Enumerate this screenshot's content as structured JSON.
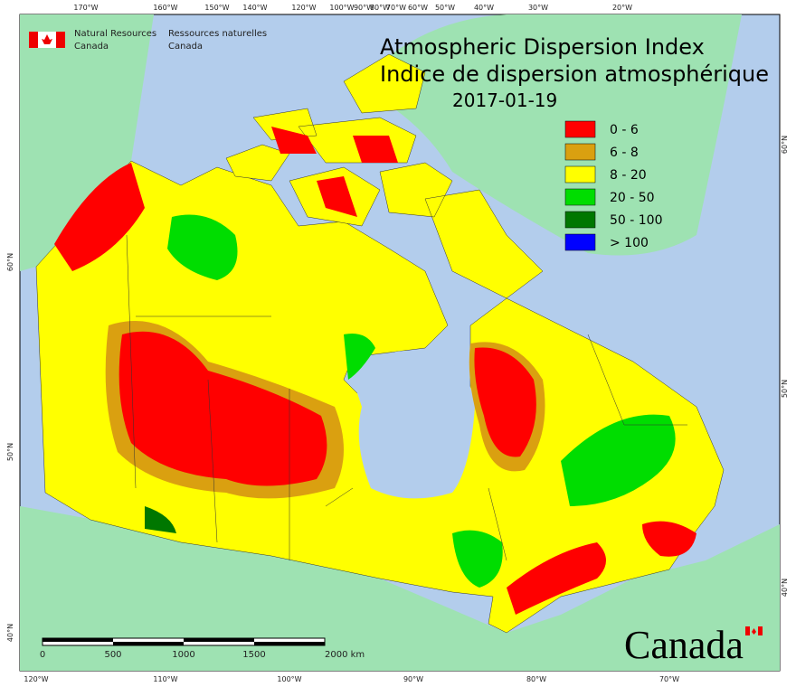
{
  "header": {
    "agency_en": [
      "Natural Resources",
      "Canada"
    ],
    "agency_fr": [
      "Ressources naturelles",
      "Canada"
    ],
    "title": [
      "Atmospheric Dispersion Index",
      "Indice de dispersion atmosphérique"
    ],
    "date": "2017-01-19"
  },
  "legend": {
    "items": [
      {
        "label": "0 - 6",
        "color": "#ff0000"
      },
      {
        "label": "6 - 8",
        "color": "#daa010"
      },
      {
        "label": "8 - 20",
        "color": "#ffff00"
      },
      {
        "label": "20 - 50",
        "color": "#00dd00"
      },
      {
        "label": "50 - 100",
        "color": "#007700"
      },
      {
        "label": "> 100",
        "color": "#0000ff"
      }
    ]
  },
  "graticule": {
    "top": [
      "170°W",
      "160°W",
      "150°W",
      "140°W",
      "120°W",
      "100°W",
      "90°W",
      "80°W",
      "70°W",
      "60°W",
      "50°W",
      "40°W",
      "30°W",
      "20°W"
    ],
    "bottom": [
      "120°W",
      "110°W",
      "100°W",
      "90°W",
      "80°W",
      "70°W"
    ],
    "left": [
      "60°N",
      "50°N",
      "40°N"
    ],
    "right": [
      "60°N",
      "50°N",
      "40°N"
    ]
  },
  "scale_bar": {
    "labels": [
      "0",
      "500",
      "1000",
      "1500",
      "2000 km"
    ]
  },
  "wordmark": "Canada"
}
